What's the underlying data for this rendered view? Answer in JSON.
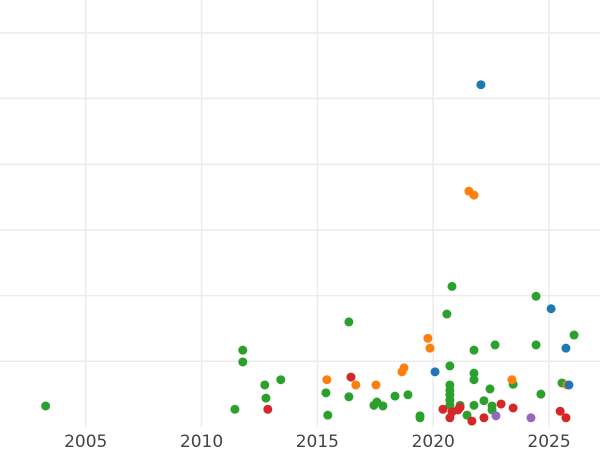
{
  "chart_data": {
    "type": "scatter",
    "title": "",
    "xlabel": "",
    "ylabel": "",
    "xlim": [
      2001.3,
      2027.2
    ],
    "ylim": [
      0,
      6.5
    ],
    "x_ticks": [
      2005,
      2010,
      2015,
      2020,
      2025
    ],
    "x_tick_labels": [
      "2005",
      "2010",
      "2015",
      "2020",
      "2025"
    ],
    "y_gridlines": [
      1,
      2,
      3,
      4,
      5,
      6
    ],
    "y_tick_labels_visible": false,
    "grid": true,
    "legend": "none",
    "series": [
      {
        "color": "#2ca02c",
        "points": [
          [
            2003.27,
            0.32
          ],
          [
            2011.44,
            0.27
          ],
          [
            2011.78,
            1.17
          ],
          [
            2011.78,
            0.99
          ],
          [
            2012.73,
            0.64
          ],
          [
            2012.78,
            0.44
          ],
          [
            2013.42,
            0.72
          ],
          [
            2015.37,
            0.52
          ],
          [
            2015.45,
            0.18
          ],
          [
            2016.36,
            1.6
          ],
          [
            2016.36,
            0.46
          ],
          [
            2017.44,
            0.33
          ],
          [
            2017.57,
            0.38
          ],
          [
            2017.83,
            0.32
          ],
          [
            2018.35,
            0.47
          ],
          [
            2018.91,
            0.49
          ],
          [
            2019.43,
            0.17
          ],
          [
            2019.43,
            0.14
          ],
          [
            2020.59,
            1.72
          ],
          [
            2020.72,
            0.93
          ],
          [
            2020.81,
            2.14
          ],
          [
            2020.72,
            0.64
          ],
          [
            2020.72,
            0.56
          ],
          [
            2020.72,
            0.49
          ],
          [
            2020.72,
            0.41
          ],
          [
            2020.72,
            0.33
          ],
          [
            2021.16,
            0.33
          ],
          [
            2021.46,
            0.18
          ],
          [
            2021.76,
            1.17
          ],
          [
            2021.76,
            0.82
          ],
          [
            2021.76,
            0.72
          ],
          [
            2021.76,
            0.33
          ],
          [
            2022.19,
            0.4
          ],
          [
            2022.45,
            0.58
          ],
          [
            2022.54,
            0.32
          ],
          [
            2022.67,
            1.25
          ],
          [
            2022.54,
            0.26
          ],
          [
            2023.45,
            0.65
          ],
          [
            2024.44,
            1.99
          ],
          [
            2024.44,
            1.25
          ],
          [
            2024.65,
            0.5
          ],
          [
            2025.56,
            0.67
          ],
          [
            2026.08,
            1.4
          ]
        ]
      },
      {
        "color": "#ff7f0e",
        "points": [
          [
            2015.41,
            0.72
          ],
          [
            2016.66,
            0.64
          ],
          [
            2017.53,
            0.64
          ],
          [
            2018.65,
            0.84
          ],
          [
            2018.74,
            0.9
          ],
          [
            2019.77,
            1.35
          ],
          [
            2019.86,
            1.2
          ],
          [
            2021.54,
            3.59
          ],
          [
            2021.76,
            3.53
          ],
          [
            2023.4,
            0.72
          ],
          [
            2025.78,
            0.64
          ]
        ]
      },
      {
        "color": "#d62728",
        "points": [
          [
            2012.86,
            0.27
          ],
          [
            2016.45,
            0.76
          ],
          [
            2020.42,
            0.27
          ],
          [
            2020.72,
            0.14
          ],
          [
            2020.81,
            0.23
          ],
          [
            2021.07,
            0.26
          ],
          [
            2021.16,
            0.3
          ],
          [
            2021.67,
            0.09
          ],
          [
            2022.19,
            0.14
          ],
          [
            2022.93,
            0.35
          ],
          [
            2023.45,
            0.29
          ],
          [
            2025.48,
            0.24
          ],
          [
            2025.73,
            0.14
          ]
        ]
      },
      {
        "color": "#1f77b4",
        "points": [
          [
            2022.06,
            5.21
          ],
          [
            2020.08,
            0.84
          ],
          [
            2025.09,
            1.8
          ],
          [
            2025.73,
            1.2
          ],
          [
            2025.86,
            0.64
          ]
        ]
      },
      {
        "color": "#9467bd",
        "points": [
          [
            2022.71,
            0.17
          ],
          [
            2024.22,
            0.14
          ]
        ]
      }
    ]
  }
}
